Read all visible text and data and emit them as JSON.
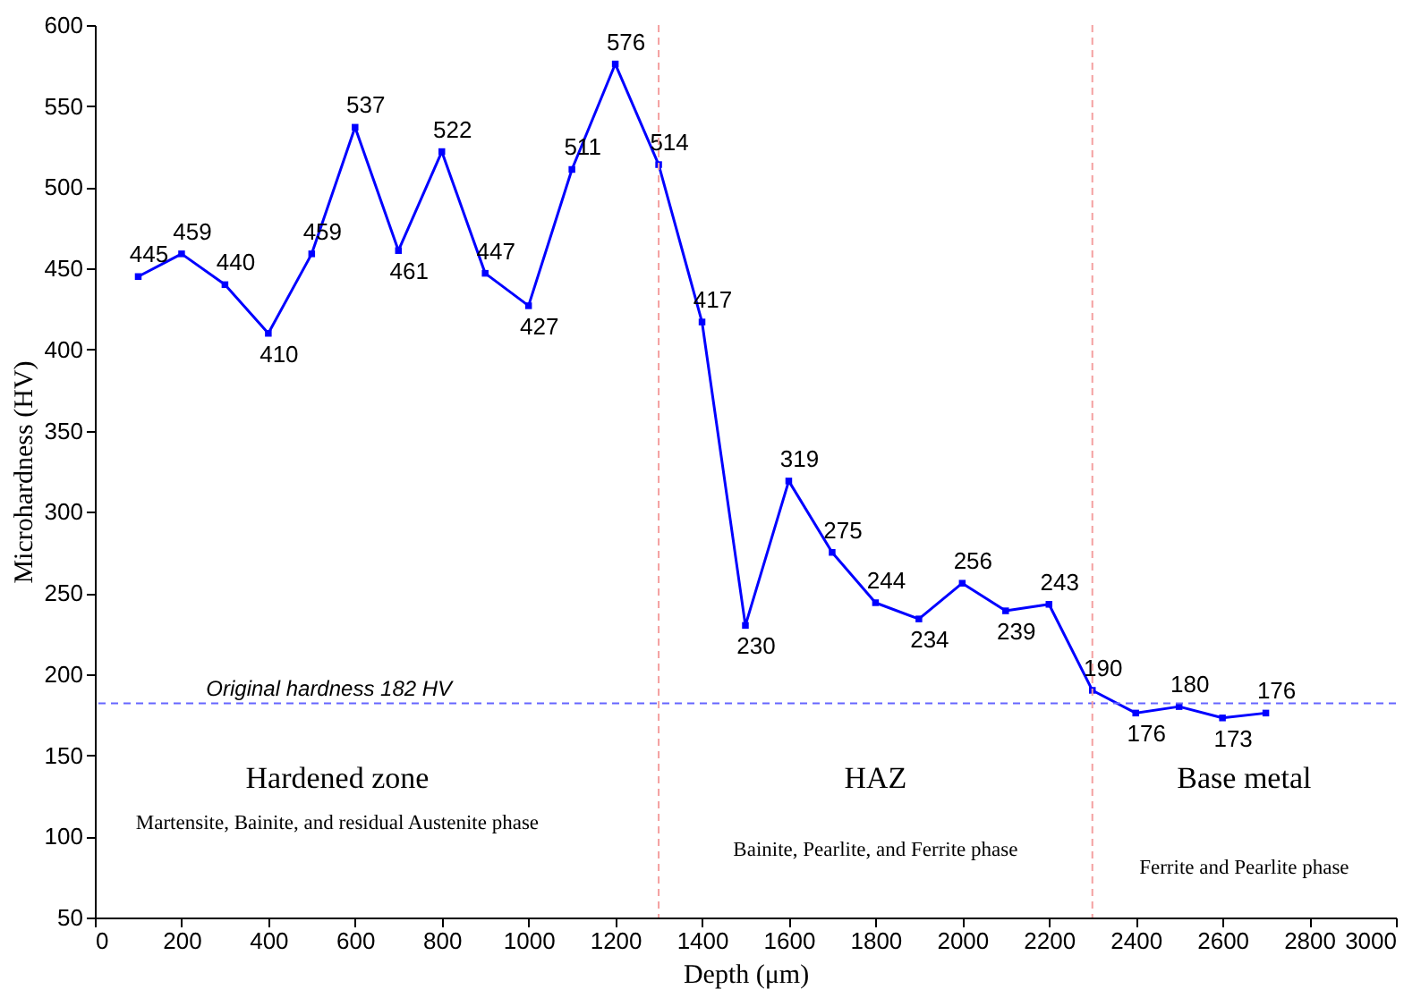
{
  "chart_data": {
    "type": "line",
    "xlabel": "Depth (μm)",
    "ylabel": "Microhardness (HV)",
    "x": [
      100,
      200,
      300,
      400,
      500,
      600,
      700,
      800,
      900,
      1000,
      1100,
      1200,
      1300,
      1400,
      1500,
      1600,
      1700,
      1800,
      1900,
      2000,
      2100,
      2200,
      2300,
      2400,
      2500,
      2600,
      2700
    ],
    "series": [
      {
        "color": "#0000ff",
        "values": [
          445,
          459,
          440,
          410,
          459,
          537,
          461,
          522,
          447,
          427,
          511,
          576,
          514,
          417,
          230,
          319,
          275,
          244,
          234,
          256,
          239,
          243,
          190,
          176,
          180,
          173,
          176
        ]
      }
    ],
    "xlim": [
      0,
      3000
    ],
    "xticks": [
      0,
      200,
      400,
      600,
      800,
      1000,
      1200,
      1400,
      1600,
      1800,
      2000,
      2200,
      2400,
      2600,
      2800,
      3000
    ],
    "ylim": [
      50,
      600
    ],
    "yticks": [
      50,
      100,
      150,
      200,
      250,
      300,
      350,
      400,
      450,
      500,
      550,
      600
    ],
    "data_labels": true,
    "marker": "square",
    "line_style": "solid",
    "grid": false,
    "ref_lines": [
      {
        "axis": "y",
        "value": 182,
        "label": "Original hardness 182 HV",
        "color": "#6666ff",
        "line_style": "dashed"
      },
      {
        "axis": "x",
        "value": 1300,
        "label": null,
        "color": "#f4a0a0",
        "line_style": "dashed"
      },
      {
        "axis": "x",
        "value": 2300,
        "label": null,
        "color": "#f4a0a0",
        "line_style": "dashed"
      }
    ],
    "annotations": [
      "Hardened zone",
      "Martensite, Bainite, and residual Austenite phase",
      "HAZ",
      "Bainite, Pearlite, and Ferrite phase",
      "Base metal",
      "Ferrite and Pearlite phase"
    ]
  }
}
